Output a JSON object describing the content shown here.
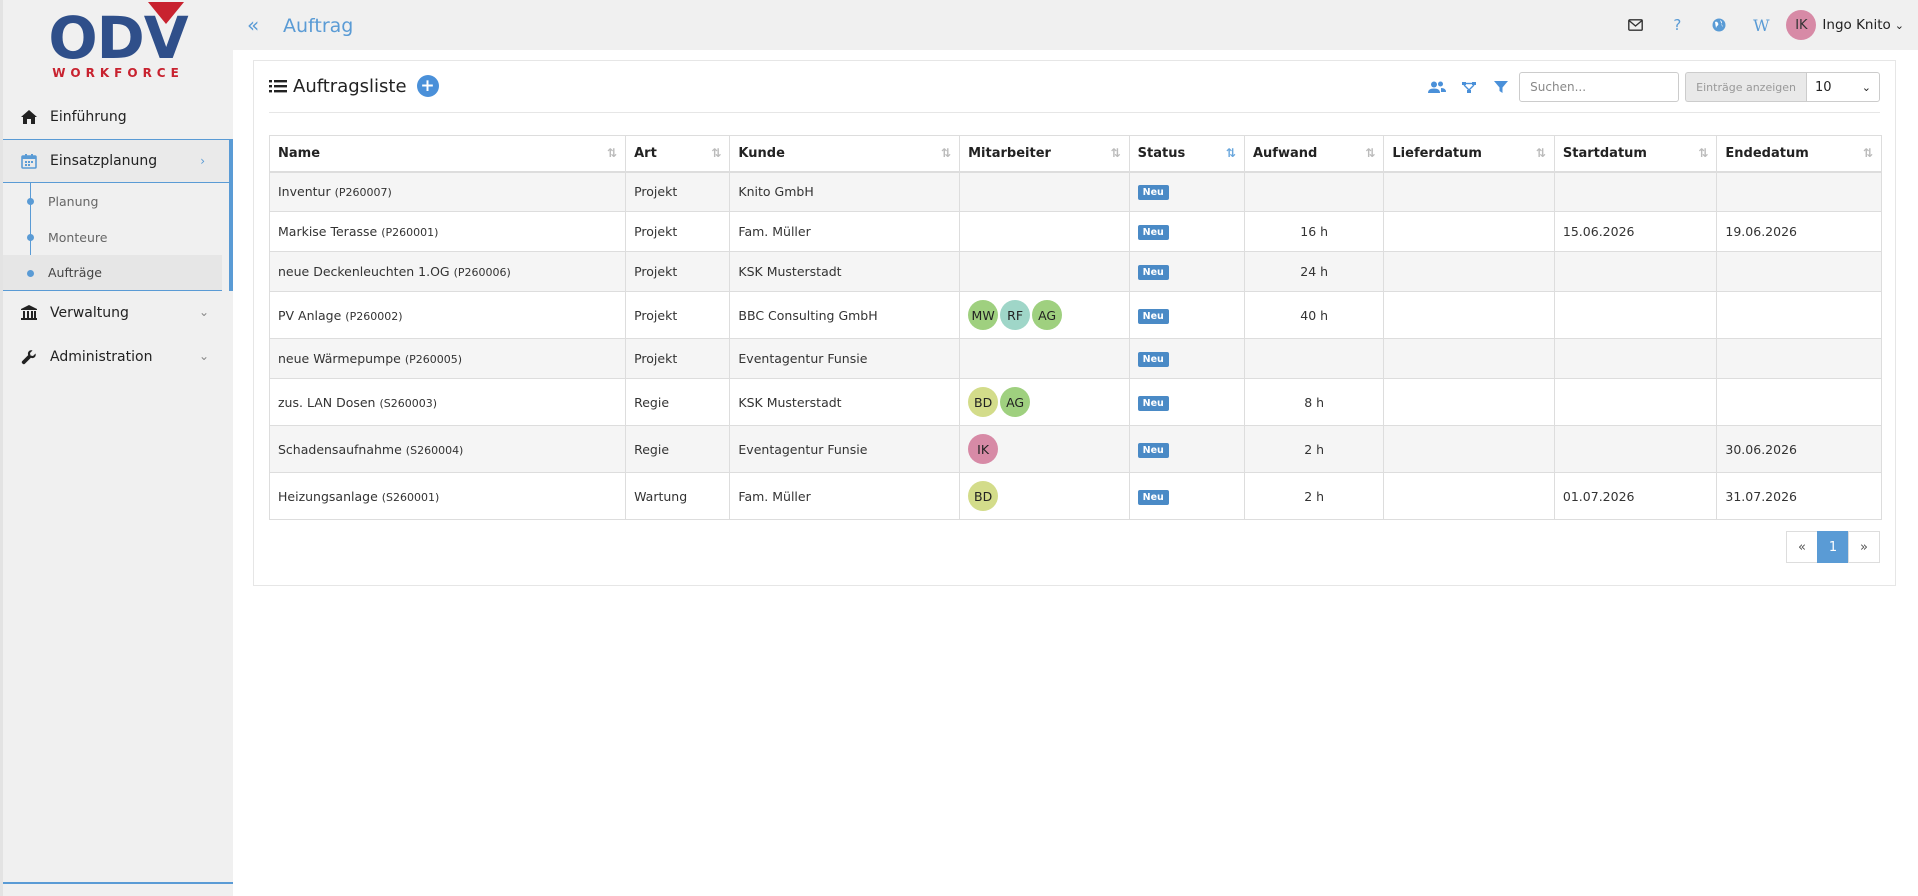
{
  "brand": {
    "name": "ODV",
    "sub": "WORKFORCE"
  },
  "sidebar": {
    "items": [
      {
        "label": "Einführung",
        "icon": "home-icon"
      },
      {
        "label": "Einsatzplanung",
        "icon": "calendar-icon"
      },
      {
        "label": "Verwaltung",
        "icon": "bank-icon"
      },
      {
        "label": "Administration",
        "icon": "wrench-icon"
      }
    ],
    "subitems": [
      {
        "label": "Planung"
      },
      {
        "label": "Monteure"
      },
      {
        "label": "Aufträge"
      }
    ]
  },
  "header": {
    "title": "Auftrag",
    "user": {
      "initials": "IK",
      "name": "Ingo Knito"
    }
  },
  "card": {
    "title": "Auftragsliste",
    "search_placeholder": "Suchen...",
    "entries_label": "Einträge anzeigen",
    "entries_value": "10"
  },
  "table": {
    "columns": [
      "Name",
      "Art",
      "Kunde",
      "Mitarbeiter",
      "Status",
      "Aufwand",
      "Lieferdatum",
      "Startdatum",
      "Endedatum"
    ],
    "rows": [
      {
        "name": "Inventur",
        "code": "(P260007)",
        "art": "Projekt",
        "kunde": "Knito GmbH",
        "mitarbeiter": [],
        "status": "Neu",
        "aufwand": "",
        "liefer": "",
        "start": "",
        "ende": ""
      },
      {
        "name": "Markise Terasse",
        "code": "(P260001)",
        "art": "Projekt",
        "kunde": "Fam. Müller",
        "mitarbeiter": [],
        "status": "Neu",
        "aufwand": "16 h",
        "liefer": "",
        "start": "15.06.2026",
        "ende": "19.06.2026"
      },
      {
        "name": "neue Deckenleuchten 1.OG",
        "code": "(P260006)",
        "art": "Projekt",
        "kunde": "KSK Musterstadt",
        "mitarbeiter": [],
        "status": "Neu",
        "aufwand": "24 h",
        "liefer": "",
        "start": "",
        "ende": ""
      },
      {
        "name": "PV Anlage",
        "code": "(P260002)",
        "art": "Projekt",
        "kunde": "BBC Consulting GmbH",
        "mitarbeiter": [
          {
            "i": "MW",
            "c": "#9fd07f"
          },
          {
            "i": "RF",
            "c": "#9fd6c8"
          },
          {
            "i": "AG",
            "c": "#9fd07f"
          }
        ],
        "status": "Neu",
        "aufwand": "40 h",
        "liefer": "",
        "start": "",
        "ende": ""
      },
      {
        "name": "neue Wärmepumpe",
        "code": "(P260005)",
        "art": "Projekt",
        "kunde": "Eventagentur Funsie",
        "mitarbeiter": [],
        "status": "Neu",
        "aufwand": "",
        "liefer": "",
        "start": "",
        "ende": ""
      },
      {
        "name": "zus. LAN Dosen",
        "code": "(S260003)",
        "art": "Regie",
        "kunde": "KSK Musterstadt",
        "mitarbeiter": [
          {
            "i": "BD",
            "c": "#d3dc8a"
          },
          {
            "i": "AG",
            "c": "#9fd07f"
          }
        ],
        "status": "Neu",
        "aufwand": "8 h",
        "liefer": "",
        "start": "",
        "ende": ""
      },
      {
        "name": "Schadensaufnahme",
        "code": "(S260004)",
        "art": "Regie",
        "kunde": "Eventagentur Funsie",
        "mitarbeiter": [
          {
            "i": "IK",
            "c": "#d78aa6"
          }
        ],
        "status": "Neu",
        "aufwand": "2 h",
        "liefer": "",
        "start": "",
        "ende": "30.06.2026"
      },
      {
        "name": "Heizungsanlage",
        "code": "(S260001)",
        "art": "Wartung",
        "kunde": "Fam. Müller",
        "mitarbeiter": [
          {
            "i": "BD",
            "c": "#d3dc8a"
          }
        ],
        "status": "Neu",
        "aufwand": "2 h",
        "liefer": "",
        "start": "01.07.2026",
        "ende": "31.07.2026"
      }
    ]
  },
  "pagination": {
    "prev": "«",
    "current": "1",
    "next": "»"
  }
}
